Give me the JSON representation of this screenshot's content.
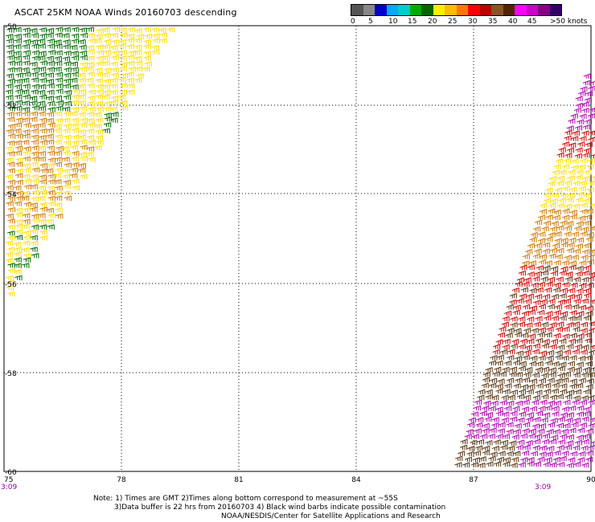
{
  "title": "ASCAT 25KM NOAA Winds 20160703 descending",
  "legend": {
    "colors": [
      "#555555",
      "#888888",
      "#0000cc",
      "#00aaff",
      "#00cccc",
      "#00aa00",
      "#006600",
      "#ffee00",
      "#ffbb00",
      "#ff7700",
      "#ff0000",
      "#bb0000",
      "#885522",
      "#552200",
      "#ff00ff",
      "#cc00cc",
      "#880088",
      "#330066"
    ],
    "labels": [
      "0",
      "5",
      "10",
      "15",
      "20",
      "25",
      "30",
      "35",
      "40",
      "45",
      ">50 knots"
    ]
  },
  "map": {
    "lon_ticks": [
      "75",
      "78",
      "81",
      "84",
      "87",
      "90"
    ],
    "lat_ticks": [
      "-50",
      "-52",
      "-54",
      "-56",
      "-58",
      "-60"
    ],
    "time_labels": [
      "3:09",
      "3:09"
    ],
    "swath_colors": {
      "green": "#006600",
      "yellow": "#ffdd00",
      "orange": "#cc7700",
      "red": "#cc0000",
      "brown": "#553311",
      "magenta": "#aa00aa"
    }
  },
  "note": {
    "line1": "Note: 1) Times are GMT 2)Times along bottom correspond to measurement at ~55S",
    "line2": "3)Data buffer is 22 hrs from 20160703 4) Black wind barbs indicate possible contamination",
    "line3": "NOAA/NESDIS/Center for Satellite Applications and Research"
  }
}
